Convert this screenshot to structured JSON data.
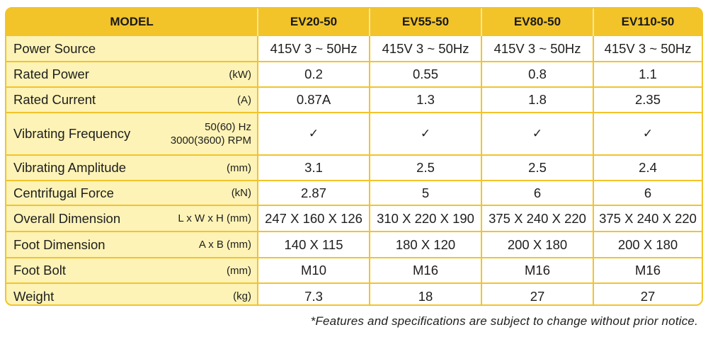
{
  "table": {
    "header": {
      "model_label": "MODEL",
      "models": [
        "EV20-50",
        "EV55-50",
        "EV80-50",
        "EV110-50"
      ]
    },
    "rows": [
      {
        "label": "Power Source",
        "unit": "",
        "values": [
          "415V 3 ~ 50Hz",
          "415V 3 ~ 50Hz",
          "415V 3 ~ 50Hz",
          "415V 3 ~ 50Hz"
        ]
      },
      {
        "label": "Rated Power",
        "unit": "(kW)",
        "values": [
          "0.2",
          "0.55",
          "0.8",
          "1.1"
        ]
      },
      {
        "label": "Rated Current",
        "unit": "(A)",
        "values": [
          "0.87A",
          "1.3",
          "1.8",
          "2.35"
        ]
      },
      {
        "label": "Vibrating Frequency",
        "unit": "50(60) Hz",
        "unit2": "3000(3600) RPM",
        "values": [
          "✓",
          "✓",
          "✓",
          "✓"
        ]
      },
      {
        "label": "Vibrating Amplitude",
        "unit": "(mm)",
        "values": [
          "3.1",
          "2.5",
          "2.5",
          "2.4"
        ]
      },
      {
        "label": "Centrifugal Force",
        "unit": "(kN)",
        "values": [
          "2.87",
          "5",
          "6",
          "6"
        ]
      },
      {
        "label": "Overall Dimension",
        "unit": "L x W x H  (mm)",
        "values": [
          "247 X 160 X 126",
          "310 X 220 X 190",
          "375 X 240 X 220",
          "375 X 240 X 220"
        ]
      },
      {
        "label": "Foot Dimension",
        "unit": "A x B  (mm)",
        "values": [
          "140 X 115",
          "180 X 120",
          "200 X 180",
          "200 X 180"
        ]
      },
      {
        "label": "Foot Bolt",
        "unit": "(mm)",
        "values": [
          "M10",
          "M16",
          "M16",
          "M16"
        ]
      },
      {
        "label": "Weight",
        "unit": "(kg)",
        "values": [
          "7.3",
          "18",
          "27",
          "27"
        ]
      }
    ]
  },
  "note": "*Features and specifications are subject to change without prior notice.",
  "colors": {
    "accent": "#f2c42a",
    "label_bg": "#fdf3b6",
    "cell_bg": "#ffffff"
  }
}
